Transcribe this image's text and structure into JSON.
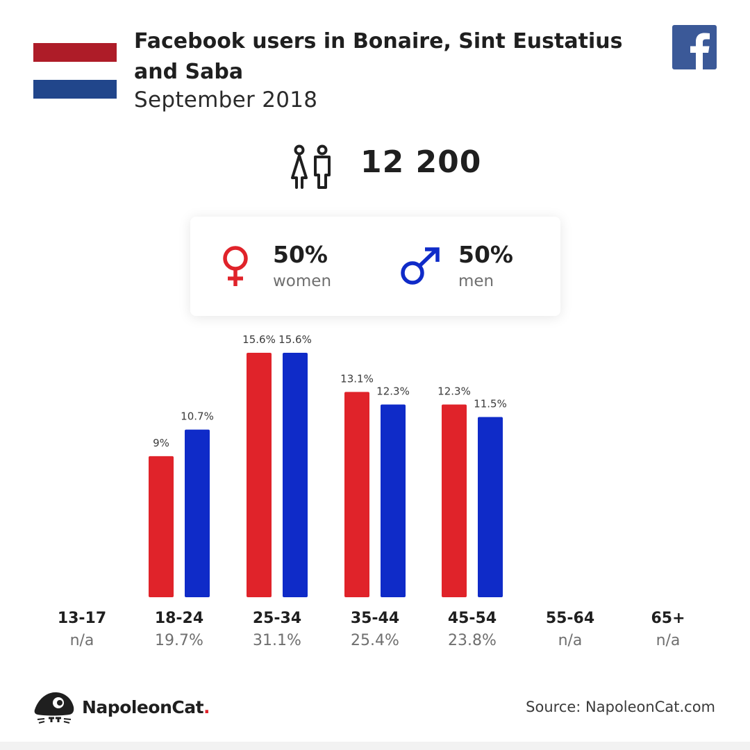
{
  "header": {
    "title": "Facebook users in Bonaire, Sint Eustatius and Saba",
    "subtitle": "September 2018",
    "flag_colors": [
      "#ae1c28",
      "#ffffff",
      "#21468b"
    ],
    "brand_icon": "facebook-icon"
  },
  "users": {
    "total": "12 200",
    "icon": "users-icon"
  },
  "gender": {
    "women": {
      "percent": "50%",
      "label": "women",
      "color": "#e0232a",
      "icon": "female-icon"
    },
    "men": {
      "percent": "50%",
      "label": "men",
      "color": "#0f2bc8",
      "icon": "male-icon"
    }
  },
  "chart_data": {
    "type": "bar",
    "title": "",
    "xlabel": "",
    "ylabel": "",
    "categories": [
      "13-17",
      "18-24",
      "25-34",
      "35-44",
      "45-54",
      "55-64",
      "65+"
    ],
    "category_totals": [
      "n/a",
      "19.7%",
      "31.1%",
      "25.4%",
      "23.8%",
      "n/a",
      "n/a"
    ],
    "series": [
      {
        "name": "women",
        "color": "#e0232a",
        "values": [
          null,
          9,
          15.6,
          13.1,
          12.3,
          null,
          null
        ],
        "labels": [
          "",
          "9%",
          "15.6%",
          "13.1%",
          "12.3%",
          "",
          ""
        ]
      },
      {
        "name": "men",
        "color": "#0f2bc8",
        "values": [
          null,
          10.7,
          15.6,
          12.3,
          11.5,
          null,
          null
        ],
        "labels": [
          "",
          "10.7%",
          "15.6%",
          "12.3%",
          "11.5%",
          "",
          ""
        ]
      }
    ],
    "ylim": [
      0,
      15.6
    ],
    "grid": false,
    "legend": "none"
  },
  "footer": {
    "brand": "NapoleonCat",
    "brand_dot": ".",
    "source": "Source: NapoleonCat.com",
    "logo_icon": "napoleoncat-logo-icon"
  }
}
